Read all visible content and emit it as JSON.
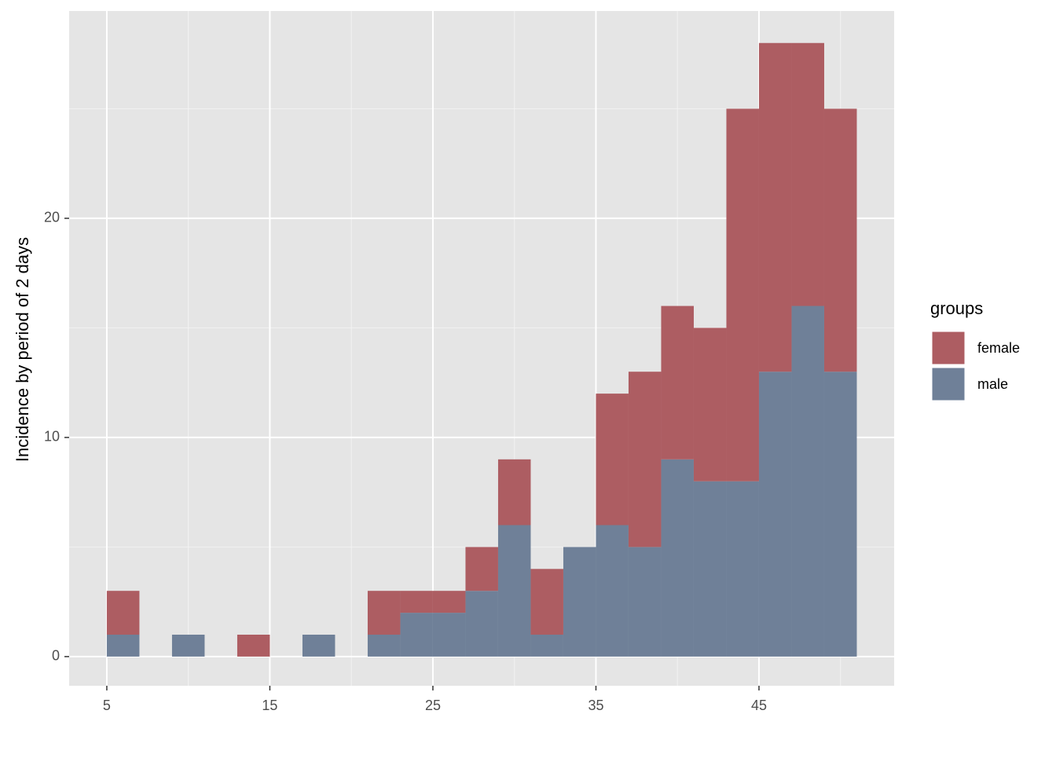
{
  "chart_data": {
    "type": "histogram",
    "ylabel": "Incidence by period of 2 days",
    "legend_title": "groups",
    "bins": [
      5,
      7,
      9,
      11,
      13,
      15,
      17,
      19,
      21,
      23,
      25,
      27,
      29,
      31,
      33,
      35,
      37,
      39,
      41,
      43,
      45,
      47,
      49,
      51
    ],
    "series": [
      {
        "name": "female",
        "color": "#ad5d62",
        "values": [
          2,
          0,
          0,
          0,
          1,
          0,
          0,
          0,
          2,
          1,
          1,
          2,
          3,
          3,
          0,
          6,
          8,
          7,
          7,
          17,
          15,
          12,
          12
        ]
      },
      {
        "name": "male",
        "color": "#6f8098",
        "values": [
          1,
          0,
          1,
          0,
          0,
          0,
          1,
          0,
          1,
          2,
          2,
          3,
          6,
          1,
          5,
          6,
          5,
          9,
          8,
          8,
          13,
          16,
          13
        ]
      }
    ],
    "stacked": true,
    "xlim": [
      2.69,
      53.29
    ],
    "ylim": [
      -1.33,
      29.46
    ],
    "xticks": [
      5,
      15,
      25,
      35,
      45
    ],
    "yticks": [
      0,
      10,
      20
    ],
    "grid": true
  }
}
